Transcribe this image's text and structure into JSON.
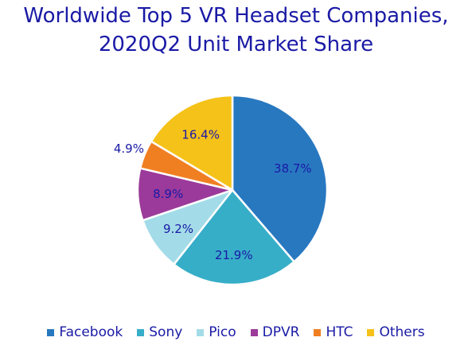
{
  "chart_data": {
    "type": "pie",
    "title": "Worldwide Top 5 VR Headset Companies,",
    "subtitle": "2020Q2 Unit Market Share",
    "legend_position": "bottom",
    "slices": [
      {
        "name": "Facebook",
        "value": 38.7,
        "label": "38.7%",
        "color": "#2878c0"
      },
      {
        "name": "Sony",
        "value": 21.9,
        "label": "21.9%",
        "color": "#37aec8"
      },
      {
        "name": "Pico",
        "value": 9.2,
        "label": "9.2%",
        "color": "#a3dce8"
      },
      {
        "name": "DPVR",
        "value": 8.9,
        "label": "8.9%",
        "color": "#9b3a9a"
      },
      {
        "name": "HTC",
        "value": 4.9,
        "label": "4.9%",
        "color": "#f07f22"
      },
      {
        "name": "Others",
        "value": 16.4,
        "label": "16.4%",
        "color": "#f5c21a"
      }
    ]
  },
  "colors": {
    "text": "#1a1aa6",
    "slice_border": "#ffffff"
  }
}
